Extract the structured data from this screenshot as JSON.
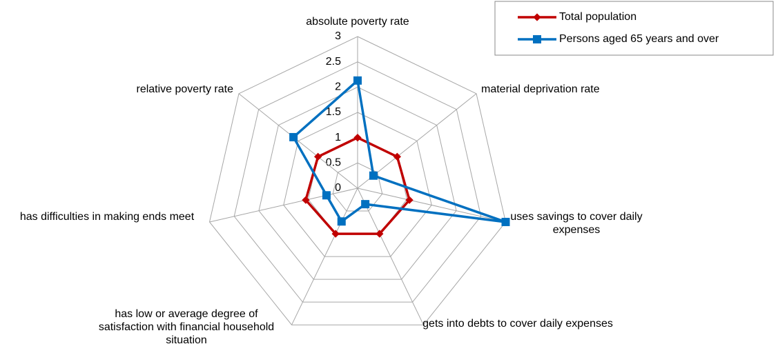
{
  "chart_data": {
    "type": "radar",
    "categories": [
      "absolute poverty rate",
      "material deprivation rate",
      "uses savings to cover daily expenses",
      "gets into debts to cover daily expenses",
      "has low or average degree of satisfaction with financial household situation",
      "has difficulties in making ends meet",
      "relative poverty rate"
    ],
    "series": [
      {
        "name": "Total population",
        "color": "#c00000",
        "values": [
          1.0,
          1.0,
          1.05,
          1.0,
          1.0,
          1.05,
          1.0
        ]
      },
      {
        "name": "Persons aged 65 years and over",
        "color": "#0070c0",
        "values": [
          2.13,
          0.4,
          3.0,
          0.35,
          0.73,
          0.63,
          1.62
        ]
      }
    ],
    "ylim": [
      0,
      3
    ],
    "yticks": [
      0,
      0.5,
      1,
      1.5,
      2,
      2.5,
      3
    ],
    "grid": true
  }
}
